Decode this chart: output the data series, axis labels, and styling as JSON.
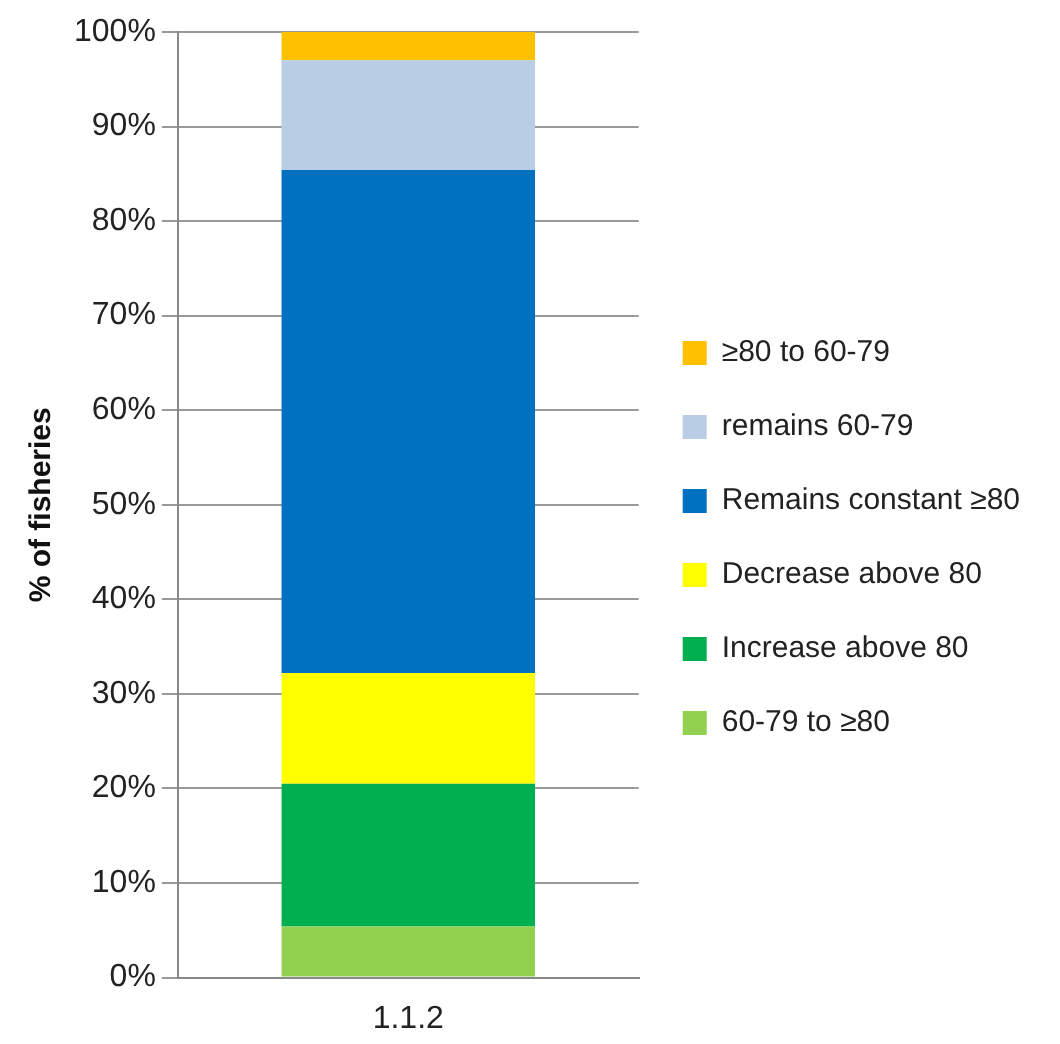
{
  "chart_data": {
    "type": "bar",
    "stacked": true,
    "ylabel": "% of fisheries",
    "categories": [
      "1.1.2"
    ],
    "series": [
      {
        "name": "60-79 to ≥80",
        "color": "#92d050",
        "values": [
          5.4
        ]
      },
      {
        "name": "Increase above 80",
        "color": "#00b050",
        "values": [
          15.1
        ]
      },
      {
        "name": "Decrease above 80",
        "color": "#ffff00",
        "values": [
          11.7
        ]
      },
      {
        "name": "Remains constant ≥80",
        "color": "#0070c0",
        "values": [
          53.2
        ]
      },
      {
        "name": "remains 60-79",
        "color": "#b9cde5",
        "values": [
          11.6
        ]
      },
      {
        "name": "≥80 to 60-79",
        "color": "#ffc000",
        "values": [
          3.0
        ]
      }
    ],
    "ylim": [
      0,
      100
    ],
    "yticks": [
      {
        "value": 0,
        "label": "0%"
      },
      {
        "value": 10,
        "label": "10%"
      },
      {
        "value": 20,
        "label": "20%"
      },
      {
        "value": 30,
        "label": "30%"
      },
      {
        "value": 40,
        "label": "40%"
      },
      {
        "value": 50,
        "label": "50%"
      },
      {
        "value": 60,
        "label": "60%"
      },
      {
        "value": 70,
        "label": "70%"
      },
      {
        "value": 80,
        "label": "80%"
      },
      {
        "value": 90,
        "label": "90%"
      },
      {
        "value": 100,
        "label": "100%"
      }
    ],
    "grid": "y",
    "legend": "right"
  }
}
